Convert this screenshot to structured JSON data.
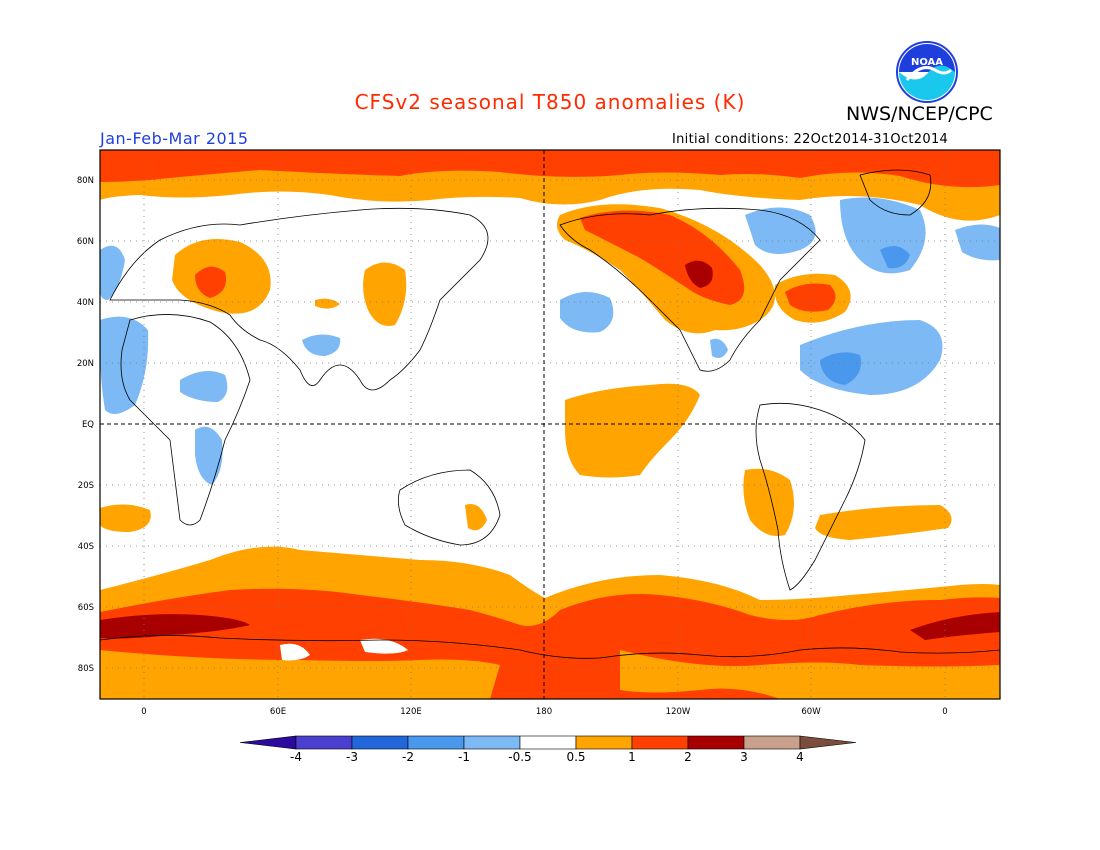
{
  "title": "CFSv2 seasonal T850 anomalies (K)",
  "season": "Jan-Feb-Mar 2015",
  "agency": "NWS/NCEP/CPC",
  "logo_text": "NOAA",
  "initial_conditions": "Initial conditions: 22Oct2014-31Oct2014",
  "colors": {
    "title": "#ff2a00",
    "season": "#1f3fdd",
    "frame": "#000000",
    "coast": "#000000",
    "grid": "#888888"
  },
  "lat_labels": [
    "80N",
    "60N",
    "40N",
    "20N",
    "EQ",
    "20S",
    "40S",
    "60S",
    "80S"
  ],
  "lon_labels": [
    "0",
    "60E",
    "120E",
    "180",
    "120W",
    "60W",
    "0"
  ],
  "colorbar": {
    "labels": [
      "-4",
      "-3",
      "-2",
      "-1",
      "-0.5",
      "0.5",
      "1",
      "2",
      "3",
      "4"
    ],
    "colors": [
      "#2b0b9d",
      "#4a3fce",
      "#2366d9",
      "#4a97ee",
      "#7db9f5",
      "#ffffff",
      "#ffa400",
      "#ff4000",
      "#a80000",
      "#c9a08c",
      "#7b4d3c"
    ]
  }
}
